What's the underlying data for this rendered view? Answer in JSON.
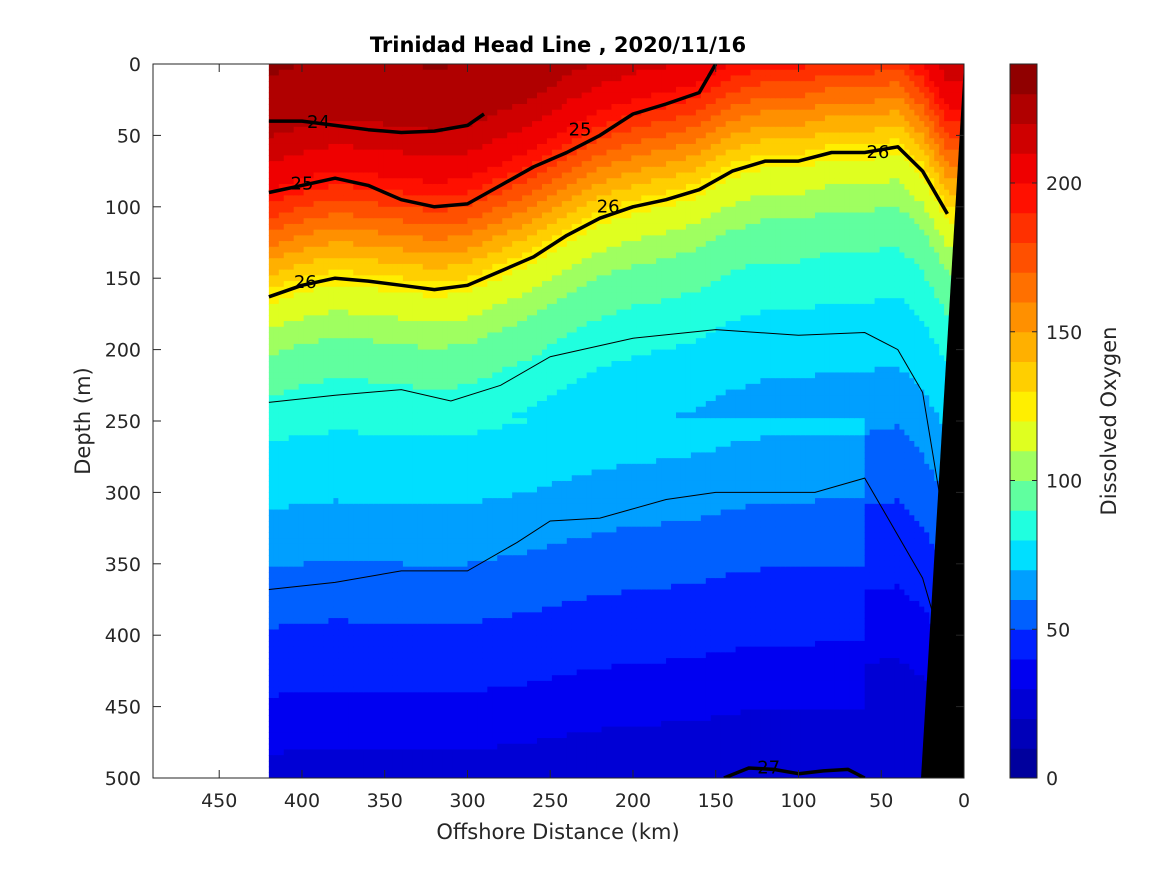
{
  "chart_data": {
    "type": "heatmap",
    "title": "Trinidad Head Line , 2020/11/16",
    "xlabel": "Offshore Distance (km)",
    "ylabel": "Depth (m)",
    "colorbar_label": "Dissolved Oxygen",
    "xlim": [
      490,
      0
    ],
    "ylim": [
      0,
      500
    ],
    "x_reversed": true,
    "y_reversed": true,
    "x_ticks": [
      450,
      400,
      350,
      300,
      250,
      200,
      150,
      100,
      50,
      0
    ],
    "y_ticks": [
      0,
      50,
      100,
      150,
      200,
      250,
      300,
      350,
      400,
      450,
      500
    ],
    "colorbar_range": [
      0,
      240
    ],
    "colorbar_ticks": [
      0,
      50,
      100,
      150,
      200
    ],
    "colorbar_levels": 24,
    "colormap": [
      "#00008f",
      "#0000ff",
      "#00ffff",
      "#ffff00",
      "#ff8000",
      "#ff0000",
      "#800000"
    ],
    "data_extent_km": [
      0,
      420
    ],
    "oxygen_profile": {
      "depth": [
        0,
        40,
        80,
        120,
        160,
        200,
        250,
        300,
        350,
        400,
        450,
        500
      ],
      "oxygen": [
        230,
        222,
        200,
        160,
        120,
        98,
        82,
        72,
        60,
        48,
        38,
        25
      ]
    },
    "isopycnals": [
      {
        "label": "24",
        "x": [
          420,
          400,
          380,
          360,
          340,
          320,
          300,
          290
        ],
        "y": [
          40,
          40,
          43,
          46,
          48,
          47,
          43,
          35
        ]
      },
      {
        "label": "25",
        "x": [
          420,
          400,
          380,
          360,
          340,
          320,
          300,
          280,
          260,
          240,
          220,
          200,
          180,
          160,
          150
        ],
        "y": [
          90,
          85,
          80,
          85,
          95,
          100,
          98,
          85,
          72,
          62,
          50,
          35,
          28,
          20,
          0
        ]
      },
      {
        "label": "26",
        "x": [
          420,
          400,
          380,
          360,
          340,
          320,
          300,
          280,
          260,
          240,
          220,
          200,
          180,
          160,
          140,
          120,
          100,
          80,
          60,
          40,
          25,
          10
        ],
        "y": [
          163,
          155,
          150,
          152,
          155,
          158,
          155,
          145,
          135,
          120,
          108,
          100,
          95,
          88,
          75,
          68,
          68,
          62,
          62,
          58,
          75,
          105
        ]
      },
      {
        "label": "27",
        "x": [
          145,
          130,
          115,
          100,
          85,
          70,
          60
        ],
        "y": [
          500,
          493,
          494,
          497,
          495,
          494,
          500
        ]
      }
    ],
    "thin_contours": [
      {
        "x": [
          420,
          380,
          340,
          310,
          280,
          250,
          200,
          150,
          100,
          60,
          40,
          25,
          15
        ],
        "y": [
          237,
          232,
          228,
          236,
          225,
          205,
          192,
          186,
          190,
          188,
          200,
          230,
          300
        ]
      },
      {
        "x": [
          420,
          380,
          340,
          300,
          270,
          250,
          220,
          180,
          150,
          120,
          90,
          60,
          40,
          25,
          15
        ],
        "y": [
          368,
          363,
          355,
          355,
          335,
          320,
          318,
          305,
          300,
          300,
          300,
          290,
          330,
          360,
          400
        ]
      }
    ],
    "contour_labels": [
      {
        "text": "24",
        "x": 390,
        "y": 40
      },
      {
        "text": "25",
        "x": 232,
        "y": 45
      },
      {
        "text": "25",
        "x": 400,
        "y": 83
      },
      {
        "text": "26",
        "x": 215,
        "y": 99
      },
      {
        "text": "26",
        "x": 52,
        "y": 61
      },
      {
        "text": "26",
        "x": 398,
        "y": 152
      },
      {
        "text": "27",
        "x": 118,
        "y": 492
      }
    ]
  }
}
